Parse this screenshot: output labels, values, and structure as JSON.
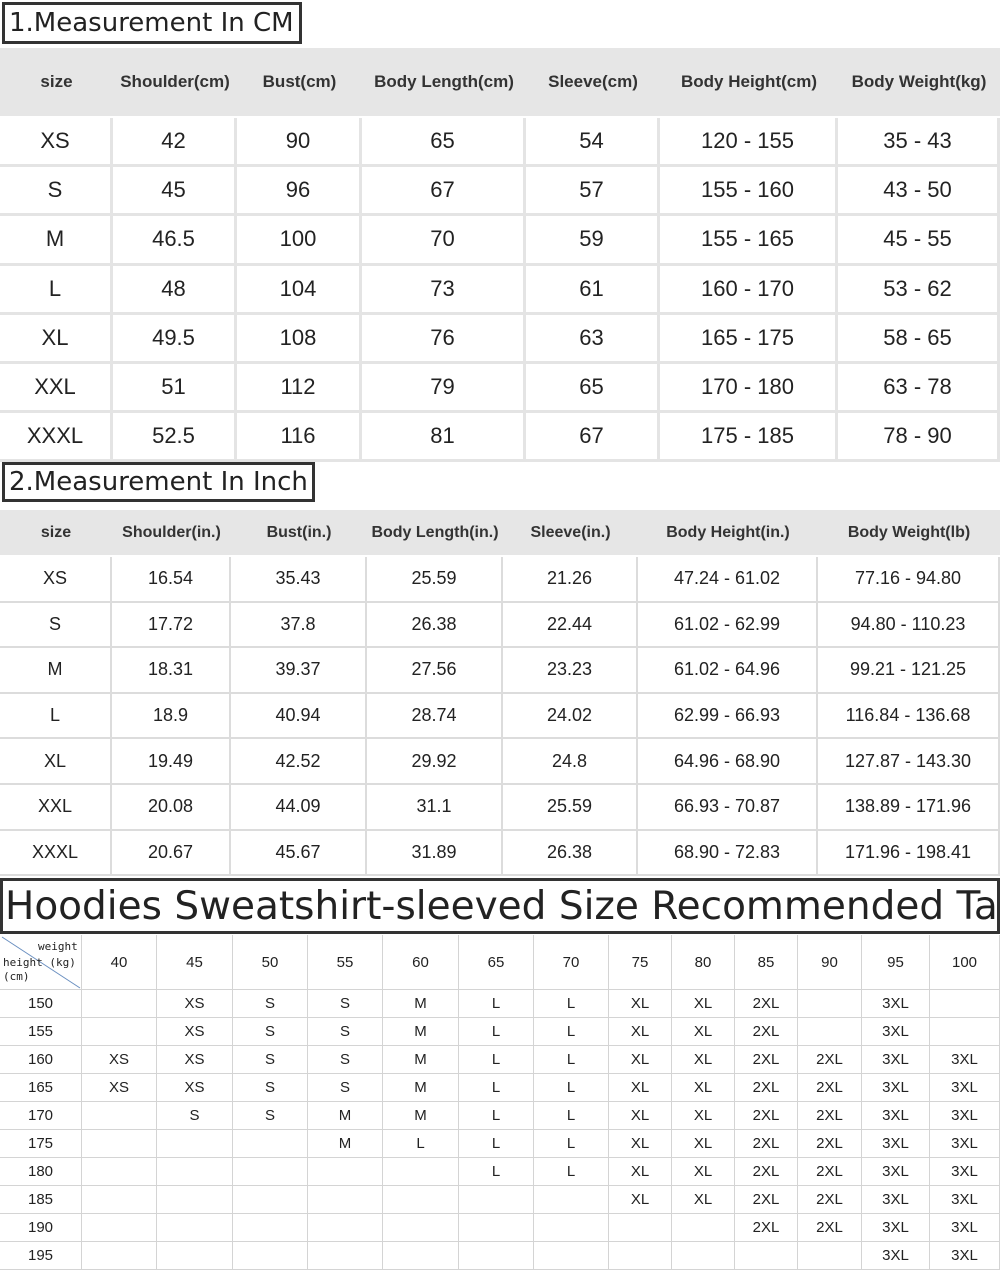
{
  "cm_section": {
    "title": "1.Measurement In CM",
    "header": [
      "size",
      "Shoulder(cm)",
      "Bust(cm)",
      "Body Length(cm)",
      "Sleeve(cm)",
      "Body Height(cm)",
      "Body Weight(kg)"
    ],
    "rows": [
      [
        "XS",
        "42",
        "90",
        "65",
        "54",
        "120 - 155",
        "35 - 43"
      ],
      [
        "S",
        "45",
        "96",
        "67",
        "57",
        "155 - 160",
        "43 - 50"
      ],
      [
        "M",
        "46.5",
        "100",
        "70",
        "59",
        "155 - 165",
        "45 - 55"
      ],
      [
        "L",
        "48",
        "104",
        "73",
        "61",
        "160 - 170",
        "53 - 62"
      ],
      [
        "XL",
        "49.5",
        "108",
        "76",
        "63",
        "165 - 175",
        "58 - 65"
      ],
      [
        "XXL",
        "51",
        "112",
        "79",
        "65",
        "170 - 180",
        "63 - 78"
      ],
      [
        "XXXL",
        "52.5",
        "116",
        "81",
        "67",
        "175 - 185",
        "78 - 90"
      ]
    ]
  },
  "inch_section": {
    "title": "2.Measurement In Inch",
    "header": [
      "size",
      "Shoulder(in.)",
      "Bust(in.)",
      "Body Length(in.)",
      "Sleeve(in.)",
      "Body Height(in.)",
      "Body Weight(lb)"
    ],
    "rows": [
      [
        "XS",
        "16.54",
        "35.43",
        "25.59",
        "21.26",
        "47.24 - 61.02",
        "77.16 - 94.80"
      ],
      [
        "S",
        "17.72",
        "37.8",
        "26.38",
        "22.44",
        "61.02 - 62.99",
        "94.80 - 110.23"
      ],
      [
        "M",
        "18.31",
        "39.37",
        "27.56",
        "23.23",
        "61.02 - 64.96",
        "99.21 - 121.25"
      ],
      [
        "L",
        "18.9",
        "40.94",
        "28.74",
        "24.02",
        "62.99 - 66.93",
        "116.84 - 136.68"
      ],
      [
        "XL",
        "19.49",
        "42.52",
        "29.92",
        "24.8",
        "64.96 - 68.90",
        "127.87 - 143.30"
      ],
      [
        "XXL",
        "20.08",
        "44.09",
        "31.1",
        "25.59",
        "66.93 - 70.87",
        "138.89 - 171.96"
      ],
      [
        "XXXL",
        "20.67",
        "45.67",
        "31.89",
        "26.38",
        "68.90 - 72.83",
        "171.96 - 198.41"
      ]
    ]
  },
  "recommend_section": {
    "title": "Hoodies Sweatshirt-sleeved Size Recommended Table",
    "corner": [
      "weight",
      "height (kg)",
      "(cm)"
    ],
    "weights": [
      "40",
      "45",
      "50",
      "55",
      "60",
      "65",
      "70",
      "75",
      "80",
      "85",
      "90",
      "95",
      "100"
    ],
    "rows": [
      {
        "height": "150",
        "sizes": [
          null,
          "XS",
          "S",
          "S",
          "M",
          "L",
          "L",
          "XL",
          "XL",
          "2XL",
          null,
          "3XL",
          null
        ]
      },
      {
        "height": "155",
        "sizes": [
          null,
          "XS",
          "S",
          "S",
          "M",
          "L",
          "L",
          "XL",
          "XL",
          "2XL",
          null,
          "3XL",
          null
        ]
      },
      {
        "height": "160",
        "sizes": [
          "XS",
          "XS",
          "S",
          "S",
          "M",
          "L",
          "L",
          "XL",
          "XL",
          "2XL",
          "2XL",
          "3XL",
          "3XL"
        ]
      },
      {
        "height": "165",
        "sizes": [
          "XS",
          "XS",
          "S",
          "S",
          "M",
          "L",
          "L",
          "XL",
          "XL",
          "2XL",
          "2XL",
          "3XL",
          "3XL"
        ]
      },
      {
        "height": "170",
        "sizes": [
          null,
          "S",
          "S",
          "M",
          "M",
          "L",
          "L",
          "XL",
          "XL",
          "2XL",
          "2XL",
          "3XL",
          "3XL"
        ]
      },
      {
        "height": "175",
        "sizes": [
          null,
          null,
          null,
          "M",
          "L",
          "L",
          "L",
          "XL",
          "XL",
          "2XL",
          "2XL",
          "3XL",
          "3XL"
        ]
      },
      {
        "height": "180",
        "sizes": [
          null,
          null,
          null,
          null,
          null,
          "L",
          "L",
          "XL",
          "XL",
          "2XL",
          "2XL",
          "3XL",
          "3XL"
        ]
      },
      {
        "height": "185",
        "sizes": [
          null,
          null,
          null,
          null,
          null,
          null,
          null,
          "XL",
          "XL",
          "2XL",
          "2XL",
          "3XL",
          "3XL"
        ]
      },
      {
        "height": "190",
        "sizes": [
          null,
          null,
          null,
          null,
          null,
          null,
          null,
          null,
          null,
          "2XL",
          "2XL",
          "3XL",
          "3XL"
        ]
      },
      {
        "height": "195",
        "sizes": [
          null,
          null,
          null,
          null,
          null,
          null,
          null,
          null,
          null,
          null,
          null,
          "3XL",
          "3XL"
        ]
      }
    ]
  }
}
